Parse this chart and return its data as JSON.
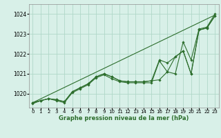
{
  "xlabel": "Graphe pression niveau de la mer (hPa)",
  "xlim": [
    -0.5,
    23.5
  ],
  "ylim": [
    1019.3,
    1024.5
  ],
  "yticks": [
    1020,
    1021,
    1022,
    1023,
    1024
  ],
  "xticks": [
    0,
    1,
    2,
    3,
    4,
    5,
    6,
    7,
    8,
    9,
    10,
    11,
    12,
    13,
    14,
    15,
    16,
    17,
    18,
    19,
    20,
    21,
    22,
    23
  ],
  "bg_color": "#d8f0e8",
  "grid_color": "#b0d8c8",
  "line_color": "#2d6e2d",
  "line1": [
    1019.55,
    1019.65,
    1019.75,
    1019.7,
    1019.6,
    1020.1,
    1020.3,
    1020.5,
    1020.85,
    1021.0,
    1020.85,
    1020.65,
    1020.6,
    1020.6,
    1020.6,
    1020.65,
    1020.7,
    1021.1,
    1021.85,
    1022.15,
    1021.0,
    1023.2,
    1023.3,
    1023.9
  ],
  "line2_x": [
    0,
    23
  ],
  "line2_y": [
    1019.55,
    1023.95
  ],
  "line3": [
    1019.5,
    1019.65,
    1019.75,
    1019.65,
    1019.55,
    1020.05,
    1020.25,
    1020.45,
    1020.8,
    1020.95,
    1020.75,
    1020.6,
    1020.55,
    1020.55,
    1020.55,
    1020.55,
    1021.65,
    1021.1,
    1021.0,
    1022.6,
    1021.7,
    1023.25,
    1023.35,
    1024.0
  ],
  "line4": [
    1019.55,
    1019.65,
    1019.75,
    1019.7,
    1019.6,
    1020.1,
    1020.3,
    1020.5,
    1020.85,
    1021.0,
    1020.85,
    1020.65,
    1020.6,
    1020.6,
    1020.6,
    1020.65,
    1021.7,
    1021.55,
    1021.85,
    1022.15,
    1021.0,
    1023.2,
    1023.3,
    1023.9
  ]
}
